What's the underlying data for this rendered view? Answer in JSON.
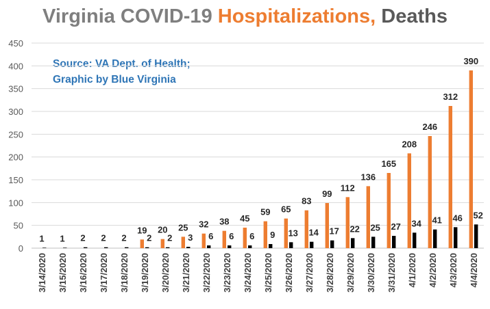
{
  "chart_data": {
    "type": "bar",
    "title_parts": [
      {
        "text": "Virginia COVID-19 ",
        "color": "#7f7f7f"
      },
      {
        "text": "Hospitalizations,",
        "color": "#ed7d31"
      },
      {
        "text": " Deaths",
        "color": "#595959"
      }
    ],
    "annotation": [
      "Source: VA Dept. of Health;",
      "Graphic by Blue Virginia"
    ],
    "annotation_color": "#2e75b6",
    "categories": [
      "3/14/2020",
      "3/15/2020",
      "3/16/2020",
      "3/17/2020",
      "3/18/2020",
      "3/19/2020",
      "3/20/2020",
      "3/21/2020",
      "3/22/2020",
      "3/23/2020",
      "3/24/2020",
      "3/25/2020",
      "3/26/2020",
      "3/27/2020",
      "3/28/2020",
      "3/29/2020",
      "3/30/2020",
      "3/31/2020",
      "4/1/2020",
      "4/2/2020",
      "4/3/2020",
      "4/4/2020"
    ],
    "series": [
      {
        "color": "#ed7d31",
        "values": [
          0,
          0,
          0,
          0,
          0,
          19,
          20,
          25,
          32,
          38,
          45,
          59,
          65,
          83,
          99,
          112,
          136,
          165,
          208,
          246,
          312,
          390
        ],
        "labels": [
          "",
          "",
          "",
          "",
          "",
          "19",
          "20",
          "25",
          "32",
          "38",
          "45",
          "59",
          "65",
          "83",
          "99",
          "112",
          "136",
          "165",
          "208",
          "246",
          "312",
          "390"
        ]
      },
      {
        "color": "#000000",
        "values": [
          1,
          1,
          2,
          2,
          2,
          2,
          2,
          3,
          6,
          6,
          6,
          9,
          13,
          14,
          17,
          22,
          25,
          27,
          34,
          41,
          46,
          52
        ],
        "labels": [
          "1",
          "1",
          "2",
          "2",
          "2",
          "2",
          "2",
          "3",
          "6",
          "6",
          "6",
          "9",
          "13",
          "14",
          "17",
          "22",
          "25",
          "27",
          "34",
          "41",
          "46",
          "52"
        ]
      }
    ],
    "yticks": [
      "0",
      "50",
      "100",
      "150",
      "200",
      "250",
      "300",
      "350",
      "400",
      "450"
    ],
    "ylim": [
      0,
      450
    ],
    "grid": true,
    "legend": "none",
    "data_label_color": "#262626"
  }
}
